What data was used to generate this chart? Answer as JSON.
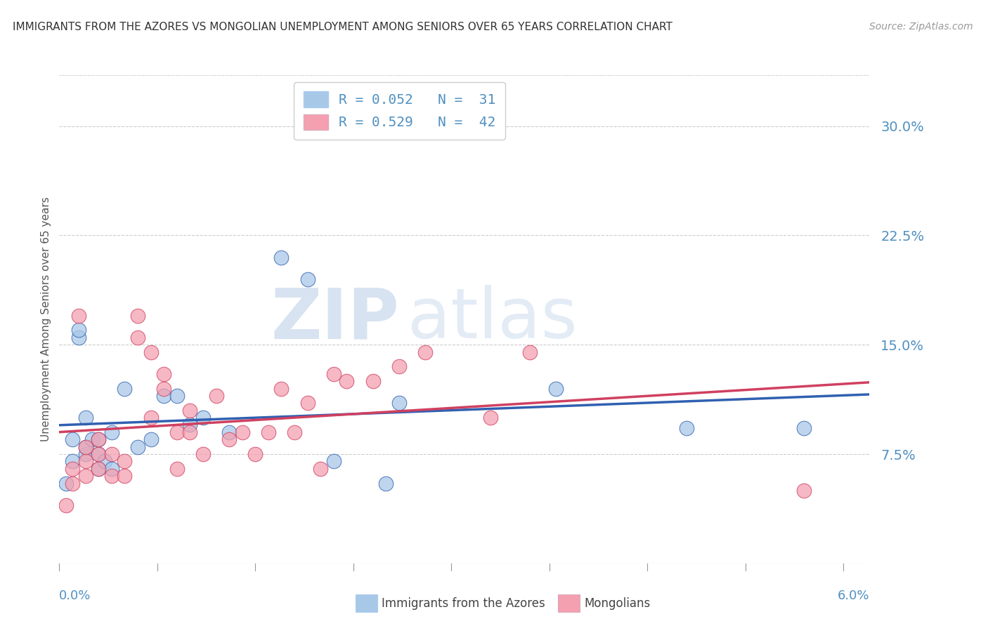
{
  "title": "IMMIGRANTS FROM THE AZORES VS MONGOLIAN UNEMPLOYMENT AMONG SENIORS OVER 65 YEARS CORRELATION CHART",
  "source": "Source: ZipAtlas.com",
  "ylabel": "Unemployment Among Seniors over 65 years",
  "yticks": [
    0.075,
    0.15,
    0.225,
    0.3
  ],
  "ytick_labels": [
    "7.5%",
    "15.0%",
    "22.5%",
    "30.0%"
  ],
  "xlim": [
    0.0,
    0.062
  ],
  "ylim": [
    0.0,
    0.335
  ],
  "legend_r1": "R = 0.052   N =  31",
  "legend_r2": "R = 0.529   N =  42",
  "color_blue": "#a8c8e8",
  "color_pink": "#f4a0b0",
  "color_blue_line": "#3060b0",
  "color_pink_line": "#d04060",
  "color_text": "#5090c0",
  "watermark_zip": "ZIP",
  "watermark_atlas": "atlas",
  "blue_scatter_x": [
    0.0005,
    0.001,
    0.001,
    0.0015,
    0.0015,
    0.002,
    0.002,
    0.002,
    0.0025,
    0.003,
    0.003,
    0.003,
    0.0035,
    0.004,
    0.004,
    0.005,
    0.006,
    0.007,
    0.008,
    0.009,
    0.01,
    0.011,
    0.013,
    0.017,
    0.019,
    0.021,
    0.025,
    0.026,
    0.038,
    0.048,
    0.057
  ],
  "blue_scatter_y": [
    0.055,
    0.07,
    0.085,
    0.155,
    0.16,
    0.075,
    0.08,
    0.1,
    0.085,
    0.065,
    0.075,
    0.085,
    0.07,
    0.065,
    0.09,
    0.12,
    0.08,
    0.085,
    0.115,
    0.115,
    0.095,
    0.1,
    0.09,
    0.21,
    0.195,
    0.07,
    0.055,
    0.11,
    0.12,
    0.093,
    0.093
  ],
  "pink_scatter_x": [
    0.0005,
    0.001,
    0.001,
    0.0015,
    0.002,
    0.002,
    0.002,
    0.003,
    0.003,
    0.003,
    0.004,
    0.004,
    0.005,
    0.005,
    0.006,
    0.006,
    0.007,
    0.007,
    0.008,
    0.008,
    0.009,
    0.009,
    0.01,
    0.01,
    0.011,
    0.012,
    0.013,
    0.014,
    0.015,
    0.016,
    0.017,
    0.018,
    0.019,
    0.02,
    0.021,
    0.022,
    0.024,
    0.026,
    0.028,
    0.033,
    0.036,
    0.057
  ],
  "pink_scatter_y": [
    0.04,
    0.055,
    0.065,
    0.17,
    0.06,
    0.07,
    0.08,
    0.065,
    0.075,
    0.085,
    0.06,
    0.075,
    0.06,
    0.07,
    0.155,
    0.17,
    0.1,
    0.145,
    0.12,
    0.13,
    0.065,
    0.09,
    0.09,
    0.105,
    0.075,
    0.115,
    0.085,
    0.09,
    0.075,
    0.09,
    0.12,
    0.09,
    0.11,
    0.065,
    0.13,
    0.125,
    0.125,
    0.135,
    0.145,
    0.1,
    0.145,
    0.05
  ]
}
